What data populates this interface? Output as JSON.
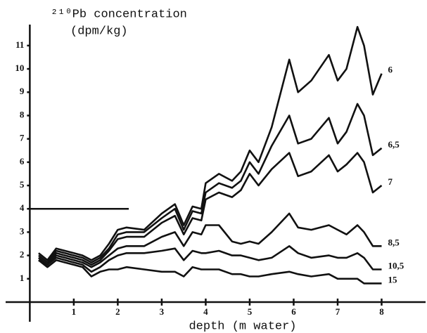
{
  "chart_data": {
    "type": "line",
    "title": "²¹⁰Pb concentration",
    "subtitle": "(dpm/kg)",
    "xlabel": "depth (m water)",
    "x": [
      0.2,
      0.4,
      0.6,
      0.8,
      1.0,
      1.2,
      1.4,
      1.6,
      1.8,
      2.0,
      2.2,
      2.6,
      3.0,
      3.3,
      3.5,
      3.7,
      3.9,
      4.0,
      4.3,
      4.6,
      4.8,
      5.0,
      5.2,
      5.5,
      5.9,
      6.1,
      6.4,
      6.8,
      7.0,
      7.2,
      7.45,
      7.6,
      7.8,
      8.0
    ],
    "series": [
      {
        "name": "6",
        "color": "#111111",
        "values": [
          2.1,
          1.8,
          2.3,
          2.2,
          2.1,
          2.0,
          1.8,
          2.0,
          2.5,
          3.1,
          3.2,
          3.1,
          3.8,
          4.2,
          3.3,
          4.1,
          4.0,
          5.1,
          5.5,
          5.2,
          5.6,
          6.5,
          6.0,
          7.5,
          10.4,
          9.0,
          9.5,
          10.6,
          9.5,
          10.0,
          11.8,
          11.0,
          8.9,
          9.8
        ]
      },
      {
        "name": "6,5",
        "color": "#111111",
        "values": [
          2.0,
          1.7,
          2.2,
          2.1,
          2.0,
          1.9,
          1.7,
          1.9,
          2.3,
          2.9,
          3.0,
          3.0,
          3.6,
          4.0,
          3.1,
          3.9,
          3.8,
          4.7,
          5.1,
          4.9,
          5.2,
          6.0,
          5.5,
          6.7,
          8.0,
          6.8,
          7.0,
          7.9,
          6.8,
          7.3,
          8.5,
          8.0,
          6.3,
          6.6
        ]
      },
      {
        "name": "7",
        "color": "#111111",
        "values": [
          1.9,
          1.6,
          2.1,
          2.0,
          1.9,
          1.8,
          1.6,
          1.8,
          2.2,
          2.7,
          2.8,
          2.8,
          3.4,
          3.7,
          2.9,
          3.6,
          3.5,
          4.4,
          4.7,
          4.5,
          4.8,
          5.5,
          5.0,
          5.7,
          6.4,
          5.4,
          5.6,
          6.3,
          5.6,
          5.9,
          6.4,
          6.0,
          4.7,
          5.0
        ]
      },
      {
        "name": "8,5",
        "color": "#111111",
        "values": [
          1.9,
          1.6,
          2.0,
          1.9,
          1.8,
          1.7,
          1.5,
          1.7,
          2.0,
          2.3,
          2.4,
          2.4,
          2.8,
          3.0,
          2.4,
          3.0,
          2.9,
          3.3,
          3.3,
          2.6,
          2.5,
          2.6,
          2.5,
          3.0,
          3.8,
          3.2,
          3.1,
          3.3,
          3.1,
          2.9,
          3.3,
          3.0,
          2.4,
          2.4
        ]
      },
      {
        "name": "10,5",
        "color": "#111111",
        "values": [
          1.8,
          1.6,
          1.9,
          1.8,
          1.7,
          1.6,
          1.3,
          1.5,
          1.8,
          2.0,
          2.1,
          2.1,
          2.2,
          2.3,
          1.8,
          2.2,
          2.1,
          2.1,
          2.2,
          2.0,
          2.0,
          1.9,
          1.8,
          1.9,
          2.4,
          2.1,
          1.9,
          2.0,
          1.9,
          1.9,
          2.1,
          1.9,
          1.4,
          1.4
        ]
      },
      {
        "name": "15",
        "color": "#111111",
        "values": [
          1.8,
          1.5,
          1.8,
          1.7,
          1.6,
          1.5,
          1.1,
          1.3,
          1.4,
          1.4,
          1.5,
          1.4,
          1.3,
          1.3,
          1.1,
          1.5,
          1.4,
          1.4,
          1.4,
          1.2,
          1.2,
          1.1,
          1.1,
          1.2,
          1.3,
          1.2,
          1.1,
          1.2,
          1.0,
          1.0,
          1.0,
          0.8,
          0.8,
          0.8
        ]
      }
    ],
    "reference_line": {
      "y": 4,
      "x": [
        0,
        2.25
      ]
    },
    "xlim": [
      -0.55,
      9.0
    ],
    "ylim": [
      0,
      11.9
    ],
    "xticks": [
      1,
      2,
      3,
      4,
      5,
      6,
      7,
      8
    ],
    "yticks": [
      1,
      2,
      3,
      4,
      5,
      6,
      7,
      8,
      9,
      10,
      11
    ]
  }
}
